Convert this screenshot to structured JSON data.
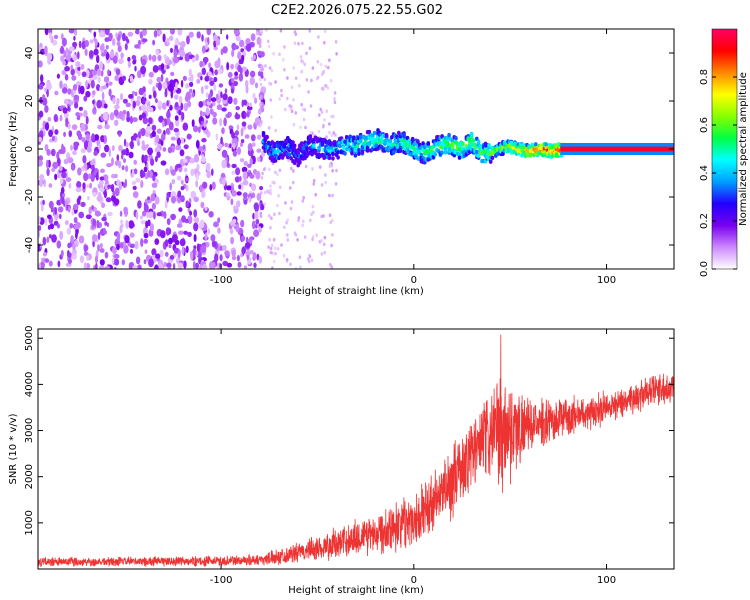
{
  "figure_title": "C2E2.2026.075.22.55.G02",
  "chart_data": [
    {
      "type": "heatmap",
      "xlabel": "Height of straight line (km)",
      "ylabel": "Frequency (Hz)",
      "xlim": [
        -195,
        135
      ],
      "ylim": [
        -50,
        50
      ],
      "x_ticks": [
        -100,
        0,
        100
      ],
      "y_ticks": [
        -40,
        -20,
        0,
        20,
        40
      ],
      "colorbar": {
        "label": "Normalized spectral amplitude",
        "range": [
          0.0,
          1.0
        ],
        "ticks": [
          0.0,
          0.2,
          0.4,
          0.6,
          0.8
        ],
        "tick_labels": [
          "0.0",
          "0.2",
          "0.4",
          "0.6",
          "0.8"
        ],
        "colormap": [
          "#ffffff",
          "#cc88ff",
          "#7700ee",
          "#2200ff",
          "#00a0ff",
          "#00ffff",
          "#00ff44",
          "#88ff00",
          "#ffff00",
          "#ff8800",
          "#ff0000",
          "#ff0066"
        ]
      },
      "signal_track": [
        {
          "x": -78,
          "f": 3,
          "a": 0.3
        },
        {
          "x": -72,
          "f": -2,
          "a": 0.4
        },
        {
          "x": -66,
          "f": 1,
          "a": 0.35
        },
        {
          "x": -60,
          "f": -3,
          "a": 0.3
        },
        {
          "x": -54,
          "f": 2,
          "a": 0.35
        },
        {
          "x": -48,
          "f": 0,
          "a": 0.4
        },
        {
          "x": -42,
          "f": -1,
          "a": 0.4
        },
        {
          "x": -36,
          "f": 2,
          "a": 0.45
        },
        {
          "x": -30,
          "f": 1,
          "a": 0.45
        },
        {
          "x": -24,
          "f": 3,
          "a": 0.5
        },
        {
          "x": -18,
          "f": 4,
          "a": 0.5
        },
        {
          "x": -12,
          "f": 2,
          "a": 0.45
        },
        {
          "x": -6,
          "f": 3,
          "a": 0.5
        },
        {
          "x": 0,
          "f": 0,
          "a": 0.5
        },
        {
          "x": 6,
          "f": -2,
          "a": 0.5
        },
        {
          "x": 12,
          "f": 1,
          "a": 0.55
        },
        {
          "x": 18,
          "f": 2,
          "a": 0.6
        },
        {
          "x": 24,
          "f": 0,
          "a": 0.6
        },
        {
          "x": 30,
          "f": 3,
          "a": 0.6
        },
        {
          "x": 36,
          "f": -2,
          "a": 0.55
        },
        {
          "x": 42,
          "f": -1,
          "a": 0.6
        },
        {
          "x": 48,
          "f": 1,
          "a": 0.65
        },
        {
          "x": 54,
          "f": 0,
          "a": 0.7
        },
        {
          "x": 60,
          "f": -1,
          "a": 0.8
        },
        {
          "x": 66,
          "f": 0,
          "a": 0.85
        },
        {
          "x": 72,
          "f": -1,
          "a": 0.9
        },
        {
          "x": 78,
          "f": 0,
          "a": 1.0
        },
        {
          "x": 100,
          "f": 0,
          "a": 1.0
        },
        {
          "x": 135,
          "f": 0,
          "a": 1.0
        }
      ]
    },
    {
      "type": "line",
      "xlabel": "Height of straight line (km)",
      "ylabel": "SNR (10 * v/v)",
      "xlim": [
        -195,
        135
      ],
      "ylim": [
        0,
        5200
      ],
      "x_ticks": [
        -100,
        0,
        100
      ],
      "y_ticks": [
        1000,
        2000,
        3000,
        4000,
        5000
      ],
      "color": "#ee3333",
      "envelope": [
        {
          "x": -195,
          "mean": 150,
          "spread": 120
        },
        {
          "x": -150,
          "mean": 160,
          "spread": 120
        },
        {
          "x": -100,
          "mean": 170,
          "spread": 130
        },
        {
          "x": -80,
          "mean": 200,
          "spread": 150
        },
        {
          "x": -60,
          "mean": 350,
          "spread": 250
        },
        {
          "x": -40,
          "mean": 550,
          "spread": 400
        },
        {
          "x": -20,
          "mean": 800,
          "spread": 550
        },
        {
          "x": 0,
          "mean": 1100,
          "spread": 700
        },
        {
          "x": 10,
          "mean": 1400,
          "spread": 800
        },
        {
          "x": 20,
          "mean": 1900,
          "spread": 900
        },
        {
          "x": 30,
          "mean": 2500,
          "spread": 1000
        },
        {
          "x": 40,
          "mean": 2900,
          "spread": 1100
        },
        {
          "x": 47,
          "mean": 3000,
          "spread": 1500
        },
        {
          "x": 60,
          "mean": 3100,
          "spread": 600
        },
        {
          "x": 80,
          "mean": 3300,
          "spread": 500
        },
        {
          "x": 100,
          "mean": 3500,
          "spread": 400
        },
        {
          "x": 120,
          "mean": 3800,
          "spread": 400
        },
        {
          "x": 135,
          "mean": 4000,
          "spread": 450
        }
      ]
    }
  ]
}
